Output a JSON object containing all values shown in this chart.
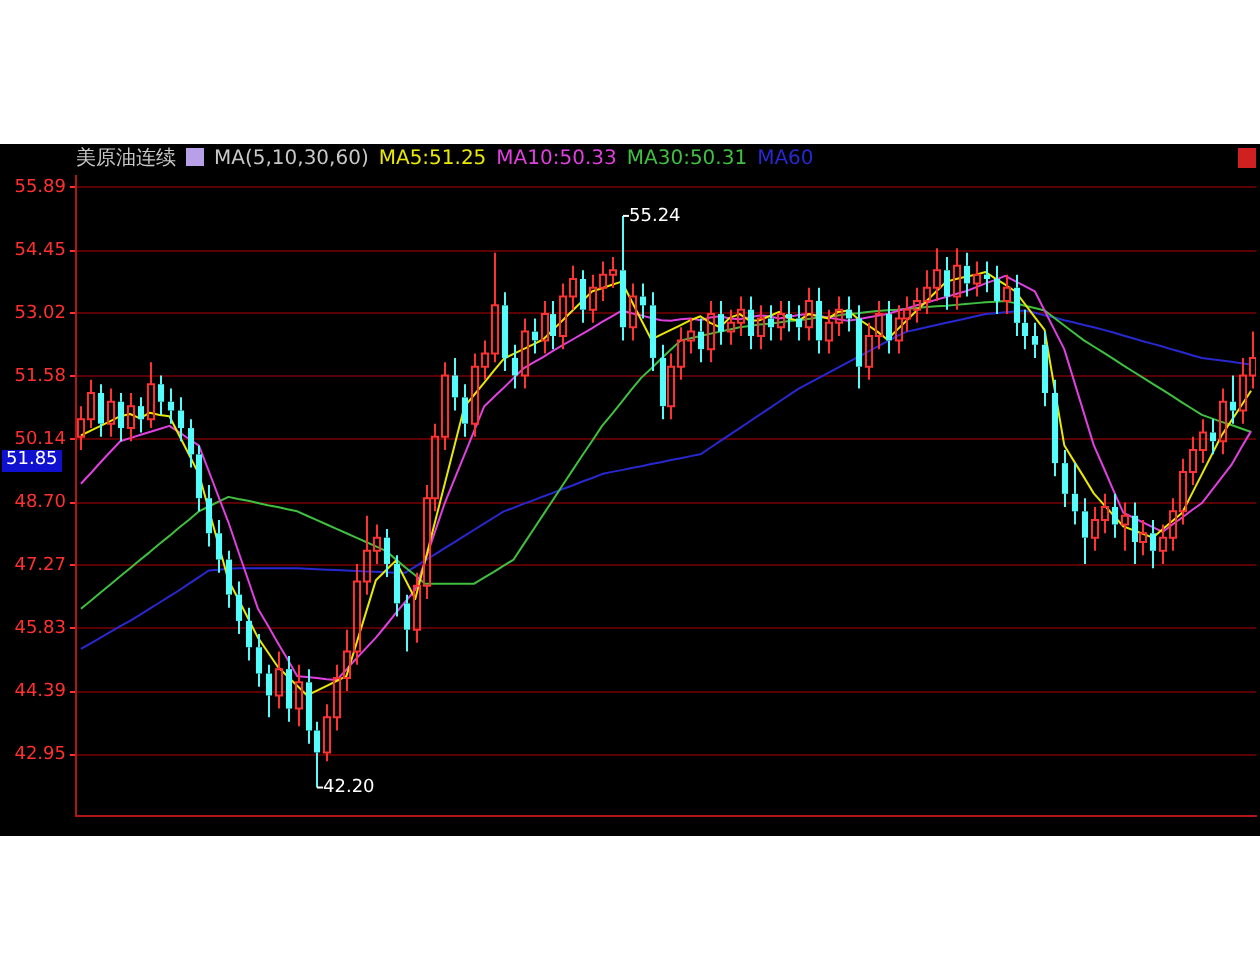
{
  "chart_data": {
    "type": "candlestick",
    "title": "美原油连续",
    "categories": [
      null,
      null,
      null,
      null,
      null,
      null,
      null,
      null,
      null,
      null,
      null,
      null,
      null,
      null,
      null,
      null,
      null,
      null,
      null,
      null,
      null,
      null,
      null,
      null,
      null,
      null,
      null,
      null,
      null,
      null,
      null,
      null,
      null,
      null,
      null,
      null,
      null,
      null,
      null,
      null,
      null,
      null,
      null,
      null,
      null,
      null,
      null,
      null,
      null,
      null,
      null,
      null,
      null,
      null,
      null,
      null,
      null,
      null,
      null,
      null,
      null,
      null,
      null,
      null,
      null,
      null,
      null,
      null,
      null,
      null,
      null,
      null,
      null,
      null,
      null,
      null,
      null,
      null,
      null,
      null,
      null,
      null,
      null,
      null,
      null,
      null,
      null,
      null,
      null,
      null,
      null,
      null,
      null,
      null,
      null,
      null,
      null,
      null,
      null,
      null,
      null,
      null,
      null,
      null,
      null,
      null,
      null,
      null,
      null,
      null,
      null,
      null,
      null,
      null,
      null,
      null,
      null,
      null,
      null,
      null
    ],
    "ohlc": [
      [
        50.2,
        50.9,
        49.9,
        50.6
      ],
      [
        50.6,
        51.5,
        50.4,
        51.2
      ],
      [
        51.2,
        51.4,
        50.2,
        50.5
      ],
      [
        50.5,
        51.3,
        50.2,
        51.0
      ],
      [
        51.0,
        51.2,
        50.1,
        50.4
      ],
      [
        50.4,
        51.2,
        50.1,
        50.9
      ],
      [
        50.9,
        51.1,
        50.3,
        50.6
      ],
      [
        50.6,
        51.9,
        50.4,
        51.4
      ],
      [
        51.4,
        51.6,
        50.7,
        51.0
      ],
      [
        51.0,
        51.3,
        50.5,
        50.8
      ],
      [
        50.8,
        51.1,
        50.1,
        50.4
      ],
      [
        50.4,
        50.6,
        49.5,
        49.8
      ],
      [
        49.8,
        50.0,
        48.5,
        48.8
      ],
      [
        48.8,
        49.1,
        47.7,
        48.0
      ],
      [
        48.0,
        48.3,
        47.1,
        47.4
      ],
      [
        47.4,
        47.6,
        46.3,
        46.6
      ],
      [
        46.6,
        46.9,
        45.7,
        46.0
      ],
      [
        46.0,
        46.3,
        45.1,
        45.4
      ],
      [
        45.4,
        45.7,
        44.5,
        44.8
      ],
      [
        44.8,
        45.0,
        43.8,
        44.3
      ],
      [
        44.3,
        45.3,
        44.0,
        44.9
      ],
      [
        44.9,
        45.2,
        43.7,
        44.0
      ],
      [
        44.0,
        45.0,
        43.6,
        44.6
      ],
      [
        44.6,
        44.9,
        43.2,
        43.5
      ],
      [
        43.5,
        43.7,
        42.2,
        43.0
      ],
      [
        43.0,
        44.1,
        42.8,
        43.8
      ],
      [
        43.8,
        45.0,
        43.5,
        44.7
      ],
      [
        44.7,
        45.8,
        44.4,
        45.3
      ],
      [
        45.3,
        47.3,
        45.0,
        46.9
      ],
      [
        46.9,
        48.4,
        46.6,
        47.6
      ],
      [
        47.6,
        48.2,
        47.3,
        47.9
      ],
      [
        47.9,
        48.1,
        47.0,
        47.3
      ],
      [
        47.3,
        47.5,
        46.1,
        46.4
      ],
      [
        46.4,
        46.6,
        45.3,
        45.8
      ],
      [
        45.8,
        47.1,
        45.5,
        46.8
      ],
      [
        46.8,
        49.1,
        46.5,
        48.8
      ],
      [
        48.8,
        50.5,
        48.5,
        50.2
      ],
      [
        50.2,
        51.9,
        49.9,
        51.6
      ],
      [
        51.6,
        52.0,
        50.8,
        51.1
      ],
      [
        51.1,
        51.4,
        50.2,
        50.5
      ],
      [
        50.5,
        52.1,
        50.2,
        51.8
      ],
      [
        51.8,
        52.4,
        51.5,
        52.1
      ],
      [
        52.1,
        54.4,
        51.9,
        53.2
      ],
      [
        53.2,
        53.5,
        51.7,
        52.0
      ],
      [
        52.0,
        52.3,
        51.3,
        51.6
      ],
      [
        51.6,
        52.9,
        51.3,
        52.6
      ],
      [
        52.6,
        52.9,
        52.1,
        52.4
      ],
      [
        52.4,
        53.3,
        52.1,
        53.0
      ],
      [
        53.0,
        53.3,
        52.2,
        52.5
      ],
      [
        52.5,
        53.7,
        52.2,
        53.4
      ],
      [
        53.4,
        54.1,
        53.1,
        53.8
      ],
      [
        53.8,
        54.0,
        52.8,
        53.1
      ],
      [
        53.1,
        53.9,
        52.8,
        53.6
      ],
      [
        53.6,
        54.2,
        53.3,
        53.9
      ],
      [
        53.9,
        54.3,
        53.6,
        54.0
      ],
      [
        54.0,
        55.24,
        52.4,
        52.7
      ],
      [
        52.7,
        53.7,
        52.4,
        53.4
      ],
      [
        53.4,
        53.7,
        52.9,
        53.2
      ],
      [
        53.2,
        53.5,
        51.7,
        52.0
      ],
      [
        52.0,
        52.3,
        50.6,
        50.9
      ],
      [
        50.9,
        52.1,
        50.6,
        51.8
      ],
      [
        51.8,
        52.7,
        51.5,
        52.4
      ],
      [
        52.4,
        52.9,
        52.1,
        52.6
      ],
      [
        52.6,
        52.9,
        51.9,
        52.2
      ],
      [
        52.2,
        53.3,
        51.9,
        53.0
      ],
      [
        53.0,
        53.3,
        52.3,
        52.6
      ],
      [
        52.6,
        53.1,
        52.3,
        52.8
      ],
      [
        52.8,
        53.4,
        52.5,
        53.1
      ],
      [
        53.1,
        53.4,
        52.2,
        52.5
      ],
      [
        52.5,
        53.2,
        52.2,
        52.9
      ],
      [
        52.9,
        53.2,
        52.4,
        52.7
      ],
      [
        52.7,
        53.3,
        52.4,
        53.0
      ],
      [
        53.0,
        53.3,
        52.6,
        52.9
      ],
      [
        52.9,
        53.2,
        52.4,
        52.7
      ],
      [
        52.7,
        53.6,
        52.4,
        53.3
      ],
      [
        53.3,
        53.6,
        52.1,
        52.4
      ],
      [
        52.4,
        53.1,
        52.1,
        52.8
      ],
      [
        52.8,
        53.4,
        52.5,
        53.1
      ],
      [
        53.1,
        53.4,
        52.6,
        52.9
      ],
      [
        52.9,
        53.2,
        51.3,
        51.8
      ],
      [
        51.8,
        52.8,
        51.5,
        52.5
      ],
      [
        52.5,
        53.3,
        52.2,
        53.0
      ],
      [
        53.0,
        53.3,
        52.1,
        52.4
      ],
      [
        52.4,
        53.2,
        52.1,
        52.9
      ],
      [
        52.9,
        53.4,
        52.6,
        53.1
      ],
      [
        53.1,
        53.6,
        52.8,
        53.3
      ],
      [
        53.3,
        54.0,
        53.0,
        53.6
      ],
      [
        53.6,
        54.5,
        53.3,
        54.0
      ],
      [
        54.0,
        54.3,
        53.1,
        53.4
      ],
      [
        53.4,
        54.5,
        53.1,
        54.1
      ],
      [
        54.1,
        54.4,
        53.4,
        53.7
      ],
      [
        53.7,
        54.2,
        53.4,
        53.9
      ],
      [
        53.9,
        54.2,
        53.5,
        53.8
      ],
      [
        53.8,
        54.1,
        53.0,
        53.3
      ],
      [
        53.3,
        53.9,
        53.0,
        53.6
      ],
      [
        53.6,
        53.9,
        52.5,
        52.8
      ],
      [
        52.8,
        53.1,
        52.2,
        52.5
      ],
      [
        52.5,
        52.8,
        52.0,
        52.3
      ],
      [
        52.3,
        52.6,
        50.9,
        51.2
      ],
      [
        51.2,
        51.5,
        49.3,
        49.6
      ],
      [
        49.6,
        49.9,
        48.6,
        48.9
      ],
      [
        48.9,
        49.6,
        48.2,
        48.5
      ],
      [
        48.5,
        48.8,
        47.3,
        47.9
      ],
      [
        47.9,
        48.6,
        47.6,
        48.3
      ],
      [
        48.3,
        48.9,
        48.0,
        48.6
      ],
      [
        48.6,
        48.9,
        47.9,
        48.2
      ],
      [
        48.2,
        48.7,
        47.6,
        48.4
      ],
      [
        48.4,
        48.7,
        47.3,
        47.8
      ],
      [
        47.8,
        48.3,
        47.5,
        48.0
      ],
      [
        48.0,
        48.3,
        47.2,
        47.6
      ],
      [
        47.6,
        48.2,
        47.3,
        47.9
      ],
      [
        47.9,
        48.8,
        47.6,
        48.5
      ],
      [
        48.5,
        49.7,
        48.2,
        49.4
      ],
      [
        49.4,
        50.2,
        49.1,
        49.9
      ],
      [
        49.9,
        50.6,
        49.6,
        50.3
      ],
      [
        50.3,
        50.6,
        49.8,
        50.1
      ],
      [
        50.1,
        51.3,
        49.8,
        51.0
      ],
      [
        51.0,
        51.6,
        50.5,
        50.8
      ],
      [
        50.8,
        52.0,
        50.5,
        51.6
      ],
      [
        51.6,
        52.6,
        51.3,
        52.0
      ]
    ],
    "colors": [
      "#ff3232",
      "#ff3232",
      "#54fcfc",
      "#ff3232",
      "#54fcfc",
      "#ff3232",
      "#54fcfc",
      "#ff3232",
      "#54fcfc",
      "#54fcfc",
      "#54fcfc",
      "#54fcfc",
      "#54fcfc",
      "#54fcfc",
      "#54fcfc",
      "#54fcfc",
      "#54fcfc",
      "#54fcfc",
      "#54fcfc",
      "#54fcfc",
      "#ff3232",
      "#54fcfc",
      "#ff3232",
      "#54fcfc",
      "#54fcfc",
      "#ff3232",
      "#ff3232",
      "#ff3232",
      "#ff3232",
      "#ff3232",
      "#ff3232",
      "#54fcfc",
      "#54fcfc",
      "#54fcfc",
      "#ff3232",
      "#ff3232",
      "#ff3232",
      "#ff3232",
      "#54fcfc",
      "#54fcfc",
      "#ff3232",
      "#ff3232",
      "#ff3232",
      "#54fcfc",
      "#54fcfc",
      "#ff3232",
      "#54fcfc",
      "#ff3232",
      "#54fcfc",
      "#ff3232",
      "#ff3232",
      "#54fcfc",
      "#ff3232",
      "#ff3232",
      "#ff3232",
      "#54fcfc",
      "#ff3232",
      "#54fcfc",
      "#54fcfc",
      "#54fcfc",
      "#ff3232",
      "#ff3232",
      "#ff3232",
      "#54fcfc",
      "#ff3232",
      "#54fcfc",
      "#ff3232",
      "#ff3232",
      "#54fcfc",
      "#ff3232",
      "#54fcfc",
      "#ff3232",
      "#54fcfc",
      "#54fcfc",
      "#ff3232",
      "#54fcfc",
      "#ff3232",
      "#ff3232",
      "#54fcfc",
      "#54fcfc",
      "#ff3232",
      "#ff3232",
      "#54fcfc",
      "#ff3232",
      "#ff3232",
      "#ff3232",
      "#ff3232",
      "#ff3232",
      "#54fcfc",
      "#ff3232",
      "#54fcfc",
      "#ff3232",
      "#54fcfc",
      "#54fcfc",
      "#ff3232",
      "#54fcfc",
      "#54fcfc",
      "#54fcfc",
      "#54fcfc",
      "#54fcfc",
      "#54fcfc",
      "#54fcfc",
      "#54fcfc",
      "#ff3232",
      "#ff3232",
      "#54fcfc",
      "#ff3232",
      "#54fcfc",
      "#ff3232",
      "#54fcfc",
      "#ff3232",
      "#ff3232",
      "#ff3232",
      "#ff3232",
      "#ff3232",
      "#54fcfc",
      "#ff3232",
      "#54fcfc",
      "#ff3232",
      "#ff3232"
    ],
    "series": [
      {
        "type": "line",
        "name": "MA5:51.25",
        "color": "#e8e800",
        "values": [
          50.23,
          50.34,
          50.45,
          50.56,
          50.67,
          50.72,
          50.62,
          50.75,
          50.7,
          50.67,
          50.23,
          49.79,
          49.35,
          48.54,
          47.74,
          46.93,
          46.5,
          46.06,
          45.62,
          45.29,
          44.96,
          44.74,
          44.52,
          44.3,
          44.41,
          44.52,
          44.63,
          44.74,
          45.47,
          46.2,
          46.93,
          47.15,
          47.37,
          46.94,
          46.5,
          47.37,
          48.25,
          49.13,
          50.01,
          50.89,
          51.16,
          51.43,
          51.71,
          51.98,
          52.09,
          52.2,
          52.31,
          52.42,
          52.64,
          52.86,
          53.08,
          53.3,
          53.52,
          53.59,
          53.67,
          53.74,
          53.3,
          52.86,
          52.42,
          52.53,
          52.64,
          52.75,
          52.86,
          52.95,
          52.8,
          52.7,
          52.92,
          53.0,
          52.85,
          52.86,
          52.95,
          53.05,
          52.9,
          52.85,
          53.0,
          52.95,
          52.9,
          53.05,
          53.08,
          52.9,
          52.75,
          52.6,
          52.42,
          52.64,
          52.86,
          53.08,
          53.3,
          53.52,
          53.74,
          53.8,
          53.85,
          53.9,
          53.96,
          53.81,
          53.67,
          53.52,
          53.23,
          52.93,
          52.64,
          51.32,
          50.01,
          49.64,
          49.28,
          48.91,
          48.66,
          48.41,
          48.16,
          48.07,
          47.99,
          47.9,
          48.09,
          48.28,
          48.47,
          48.91,
          49.35,
          49.79,
          50.23,
          50.57,
          50.91,
          51.25
        ]
      },
      {
        "type": "line",
        "name": "MA10:50.33",
        "color": "#e040e0",
        "values": [
          49.13,
          49.37,
          49.62,
          49.86,
          50.1,
          50.17,
          50.24,
          50.31,
          50.38,
          50.45,
          50.3,
          50.15,
          50.0,
          49.42,
          48.83,
          48.25,
          47.59,
          46.94,
          46.28,
          45.9,
          45.51,
          45.13,
          44.74,
          44.72,
          44.7,
          44.67,
          44.65,
          44.89,
          45.14,
          45.38,
          45.62,
          45.89,
          46.17,
          46.44,
          46.71,
          47.37,
          48.03,
          48.69,
          49.24,
          49.79,
          50.34,
          50.89,
          51.11,
          51.32,
          51.54,
          51.76,
          51.89,
          52.02,
          52.16,
          52.29,
          52.42,
          52.55,
          52.68,
          52.82,
          52.95,
          53.08,
          53.02,
          52.97,
          52.91,
          52.86,
          52.85,
          52.88,
          52.9,
          52.86,
          52.92,
          52.95,
          52.9,
          52.88,
          52.93,
          52.97,
          52.95,
          52.9,
          52.94,
          52.98,
          53.0,
          52.96,
          52.92,
          52.88,
          52.85,
          52.88,
          52.92,
          52.96,
          53.0,
          53.07,
          53.13,
          53.2,
          53.26,
          53.33,
          53.39,
          53.46,
          53.52,
          53.61,
          53.7,
          53.78,
          53.87,
          53.75,
          53.64,
          53.52,
          53.08,
          52.64,
          52.2,
          51.47,
          50.74,
          50.01,
          49.5,
          48.98,
          48.47,
          48.36,
          48.25,
          48.14,
          48.03,
          48.2,
          48.36,
          48.53,
          48.69,
          48.98,
          49.27,
          49.56,
          49.95,
          50.33
        ]
      },
      {
        "type": "line",
        "name": "MA30:50.31",
        "color": "#40c040",
        "values": [
          46.28,
          46.46,
          46.65,
          46.83,
          47.02,
          47.2,
          47.39,
          47.57,
          47.76,
          47.94,
          48.13,
          48.31,
          48.5,
          48.61,
          48.72,
          48.83,
          48.78,
          48.74,
          48.69,
          48.64,
          48.6,
          48.55,
          48.5,
          48.4,
          48.3,
          48.2,
          48.1,
          48.0,
          47.9,
          47.8,
          47.7,
          47.6,
          47.41,
          47.22,
          47.04,
          46.85,
          46.85,
          46.85,
          46.85,
          46.85,
          46.85,
          46.99,
          47.12,
          47.26,
          47.4,
          47.74,
          48.08,
          48.42,
          48.76,
          49.1,
          49.44,
          49.78,
          50.11,
          50.45,
          50.72,
          51.0,
          51.28,
          51.55,
          51.76,
          51.98,
          52.19,
          52.4,
          52.45,
          52.5,
          52.55,
          52.6,
          52.65,
          52.7,
          52.73,
          52.76,
          52.78,
          52.81,
          52.84,
          52.86,
          52.89,
          52.92,
          52.94,
          52.97,
          53.0,
          53.02,
          53.05,
          53.07,
          53.09,
          53.1,
          53.12,
          53.14,
          53.16,
          53.18,
          53.19,
          53.21,
          53.23,
          53.25,
          53.27,
          53.28,
          53.3,
          53.25,
          53.19,
          53.14,
          53.08,
          52.91,
          52.74,
          52.57,
          52.4,
          52.26,
          52.12,
          51.98,
          51.83,
          51.69,
          51.55,
          51.41,
          51.27,
          51.13,
          50.98,
          50.84,
          50.7,
          50.62,
          50.54,
          50.47,
          50.39,
          50.31
        ]
      },
      {
        "type": "line",
        "name": "MA60",
        "color": "#2828d0",
        "values": [
          45.36,
          45.49,
          45.62,
          45.75,
          45.88,
          46.0,
          46.14,
          46.28,
          46.42,
          46.56,
          46.7,
          46.85,
          47.0,
          47.15,
          47.17,
          47.19,
          47.2,
          47.2,
          47.2,
          47.2,
          47.2,
          47.2,
          47.2,
          47.19,
          47.18,
          47.17,
          47.16,
          47.15,
          47.14,
          47.13,
          47.12,
          47.11,
          47.1,
          47.1,
          47.24,
          47.38,
          47.52,
          47.66,
          47.8,
          47.94,
          48.08,
          48.22,
          48.36,
          48.5,
          48.58,
          48.67,
          48.75,
          48.84,
          48.92,
          49.01,
          49.09,
          49.18,
          49.26,
          49.35,
          49.4,
          49.44,
          49.49,
          49.53,
          49.58,
          49.62,
          49.67,
          49.71,
          49.76,
          49.8,
          49.95,
          50.1,
          50.25,
          50.4,
          50.55,
          50.7,
          50.85,
          51.0,
          51.15,
          51.3,
          51.42,
          51.54,
          51.66,
          51.78,
          51.9,
          52.02,
          52.14,
          52.26,
          52.38,
          52.5,
          52.6,
          52.65,
          52.7,
          52.75,
          52.8,
          52.85,
          52.9,
          52.95,
          53.0,
          53.02,
          53.04,
          53.06,
          53.08,
          53.03,
          52.97,
          52.92,
          52.86,
          52.81,
          52.75,
          52.7,
          52.64,
          52.58,
          52.51,
          52.45,
          52.38,
          52.32,
          52.26,
          52.19,
          52.13,
          52.06,
          52.0,
          51.97,
          51.94,
          51.91,
          51.88,
          51.85
        ]
      }
    ],
    "ylim": [
      41.55,
      56.15
    ],
    "yticks": [
      55.89,
      54.45,
      53.02,
      51.58,
      50.14,
      {
        "value": 48.7,
        "label": "48.70"
      },
      47.27,
      45.83,
      44.39,
      42.95
    ],
    "grid": "y",
    "legend": "top left",
    "tick_labels": "y",
    "marker": "none",
    "annotations": [
      "MA(5,10,30,60)",
      "51.85",
      "55.24",
      "42.20"
    ]
  }
}
